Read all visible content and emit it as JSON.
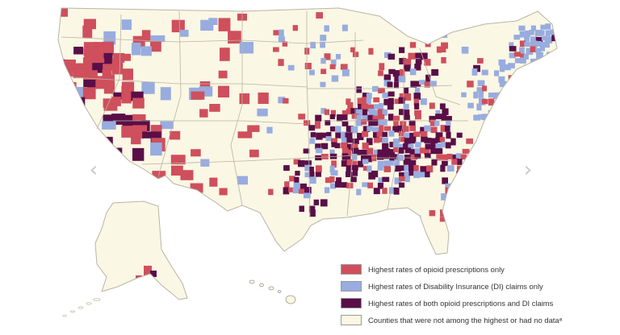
{
  "colors": {
    "opioid_only": "#cf4f5c",
    "di_only": "#98acdf",
    "both": "#5a0e47",
    "none": "#faf7e4",
    "border": "#b9b4a6",
    "arrow": "#c8c8c8"
  },
  "legend": {
    "items": [
      {
        "label": "Highest rates of opioid prescriptions only",
        "color_key": "opioid_only"
      },
      {
        "label": "Highest rates of Disability Insurance (DI) claims only",
        "color_key": "di_only"
      },
      {
        "label": "Highest rates of both opioid prescriptions and DI claims",
        "color_key": "both"
      },
      {
        "label": "Counties that were not among the highest or had no dataᵃ",
        "color_key": "none"
      }
    ]
  },
  "navigation": {
    "prev_icon": "chevron-left-icon",
    "next_icon": "chevron-right-icon",
    "prev_glyph": "‹",
    "next_glyph": "›"
  }
}
